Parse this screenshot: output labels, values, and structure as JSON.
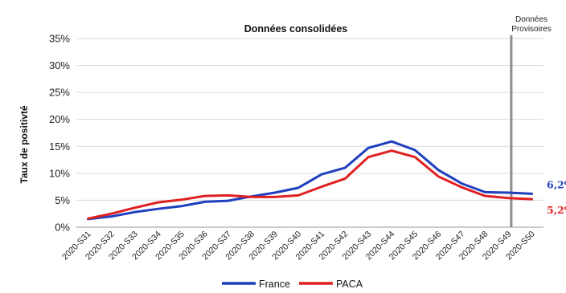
{
  "chart_data": {
    "type": "line",
    "title": "Données consolidées",
    "provisional_label_line1": "Données",
    "provisional_label_line2": "Provisoires",
    "ylabel": "Taux de positivté",
    "xlabel": "",
    "ylim": [
      0,
      35
    ],
    "yticks": [
      "0%",
      "5%",
      "10%",
      "15%",
      "20%",
      "25%",
      "30%",
      "35%"
    ],
    "grid": true,
    "legend_position": "bottom",
    "categories": [
      "2020-S31",
      "2020-S32",
      "2020-S33",
      "2020-S34",
      "2020-S35",
      "2020-S36",
      "2020-S37",
      "2020-S38",
      "2020-S39",
      "2020-S40",
      "2020-S41",
      "2020-S42",
      "2020-S43",
      "2020-S44",
      "2020-S45",
      "2020-S46",
      "2020-S47",
      "2020-S48",
      "2020-S49",
      "2020-S50"
    ],
    "series": [
      {
        "name": "France",
        "color": "#1f3fbf",
        "values": [
          1.5,
          2.0,
          2.8,
          3.4,
          3.9,
          4.7,
          4.9,
          5.7,
          6.4,
          7.3,
          9.8,
          11.0,
          14.7,
          15.9,
          14.3,
          10.6,
          8.1,
          6.5,
          6.4,
          6.2
        ],
        "end_label": "6,2%"
      },
      {
        "name": "PACA",
        "color": "#e02020",
        "values": [
          1.6,
          2.5,
          3.6,
          4.6,
          5.1,
          5.8,
          5.9,
          5.6,
          5.6,
          5.9,
          7.5,
          9.0,
          13.0,
          14.2,
          13.0,
          9.4,
          7.4,
          5.8,
          5.4,
          5.2
        ],
        "end_label": "5,2%"
      }
    ],
    "provisional_from_index": 18
  }
}
